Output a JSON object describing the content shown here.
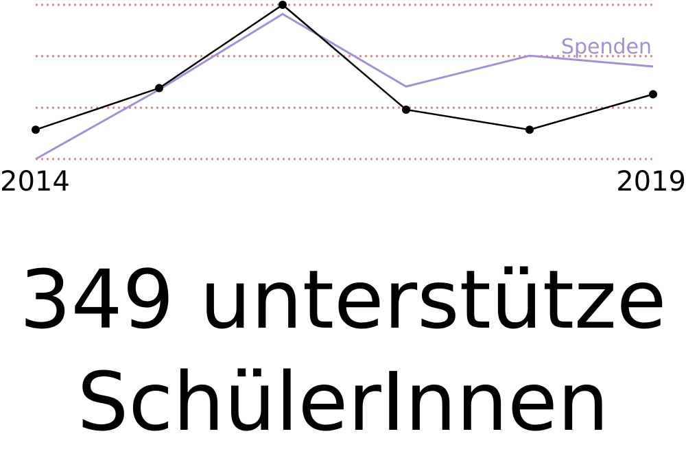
{
  "chart_data": {
    "type": "line",
    "x": [
      2014,
      2015,
      2016,
      2017,
      2018,
      2019
    ],
    "x_tick_labels": [
      "2014",
      "2019"
    ],
    "series": [
      {
        "name": "",
        "color": "#000000",
        "markers": true,
        "values": [
          0.19,
          0.46,
          1.0,
          0.32,
          0.19,
          0.42
        ]
      },
      {
        "name": "Spenden",
        "color": "#a48fd6",
        "markers": false,
        "values": [
          0.0,
          0.45,
          0.94,
          0.47,
          0.67,
          0.6
        ]
      }
    ],
    "gridlines": [
      0.0,
      0.333,
      0.667,
      1.0
    ],
    "grid_color": "#d98a8a",
    "ylim": [
      0,
      1
    ],
    "title": "",
    "xlabel": "",
    "ylabel": ""
  },
  "headline": {
    "line1": "349 unterstütze",
    "line2": "SchülerInnen"
  }
}
